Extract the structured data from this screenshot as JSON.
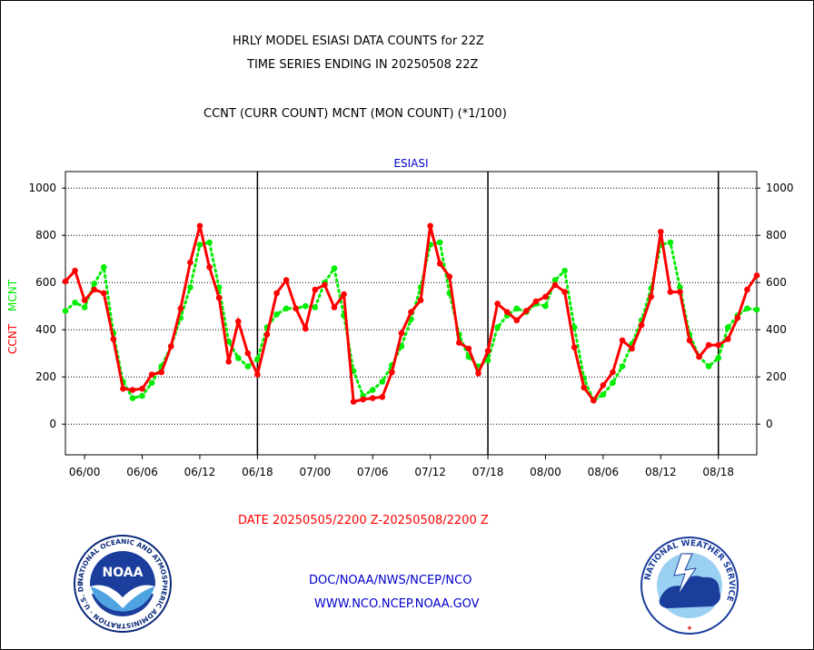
{
  "header": {
    "title_line1": "HRLY MODEL ESIASI DATA COUNTS for 22Z",
    "title_line2": "TIME SERIES ENDING IN 20250508 22Z",
    "subtitle": "CCNT (CURR COUNT) MCNT (MON COUNT) (*1/100)"
  },
  "footer": {
    "date_range": "DATE 20250505/2200 Z-20250508/2200 Z",
    "org_line": "DOC/NOAA/NWS/NCEP/NCO",
    "url_line": "WWW.NCO.NCEP.NOAA.GOV"
  },
  "logos": {
    "noaa": {
      "center_text": "NOAA",
      "ring_text": "NATIONAL OCEANIC AND ATMOSPHERIC ADMINISTRATION · U.S. DEPARTMENT OF COMMERCE"
    },
    "nws": {
      "ring_text": "NATIONAL WEATHER SERVICE"
    }
  },
  "colors": {
    "ccnt": "#ff0000",
    "mcnt": "#00ee00",
    "title_blue": "#0000cc",
    "footer_red": "#ff0000"
  },
  "chart_data": {
    "type": "line",
    "title": "ESIASI",
    "ylabel_ccnt": "CCNT",
    "ylabel_mcnt": "MCNT",
    "ylim": [
      -130,
      1070
    ],
    "y_ticks": [
      0,
      200,
      400,
      600,
      800,
      1000
    ],
    "x_tick_labels": [
      "06/00",
      "06/06",
      "06/12",
      "06/18",
      "07/00",
      "07/06",
      "07/12",
      "07/18",
      "08/00",
      "08/06",
      "08/12",
      "08/18"
    ],
    "x_tick_hours": [
      2,
      8,
      14,
      20,
      26,
      32,
      38,
      44,
      50,
      56,
      62,
      68
    ],
    "xlim_hours": [
      0,
      72
    ],
    "day_boundaries_hours": [
      20,
      44,
      68
    ],
    "grid": true,
    "series": [
      {
        "name": "CCNT",
        "style": "solid",
        "values": [
          [
            0,
            605
          ],
          [
            1,
            650
          ],
          [
            2,
            525
          ],
          [
            3,
            570
          ],
          [
            4,
            555
          ],
          [
            5,
            360
          ],
          [
            6,
            150
          ],
          [
            7,
            145
          ],
          [
            8,
            150
          ],
          [
            9,
            210
          ],
          [
            10,
            220
          ],
          [
            11,
            330
          ],
          [
            12,
            490
          ],
          [
            13,
            685
          ],
          [
            14,
            840
          ],
          [
            15,
            665
          ],
          [
            16,
            535
          ],
          [
            17,
            265
          ],
          [
            18,
            435
          ],
          [
            19,
            300
          ],
          [
            20,
            210
          ],
          [
            21,
            380
          ],
          [
            22,
            555
          ],
          [
            23,
            610
          ],
          [
            24,
            490
          ],
          [
            25,
            405
          ],
          [
            26,
            570
          ],
          [
            27,
            590
          ],
          [
            28,
            495
          ],
          [
            29,
            550
          ],
          [
            30,
            95
          ],
          [
            31,
            105
          ],
          [
            32,
            110
          ],
          [
            33,
            115
          ],
          [
            34,
            220
          ],
          [
            35,
            385
          ],
          [
            36,
            475
          ],
          [
            37,
            525
          ],
          [
            38,
            840
          ],
          [
            39,
            680
          ],
          [
            40,
            625
          ],
          [
            41,
            345
          ],
          [
            42,
            320
          ],
          [
            43,
            215
          ],
          [
            44,
            310
          ],
          [
            45,
            510
          ],
          [
            46,
            475
          ],
          [
            47,
            440
          ],
          [
            48,
            480
          ],
          [
            49,
            520
          ],
          [
            50,
            540
          ],
          [
            51,
            590
          ],
          [
            52,
            560
          ],
          [
            53,
            325
          ],
          [
            54,
            155
          ],
          [
            55,
            100
          ],
          [
            56,
            165
          ],
          [
            57,
            220
          ],
          [
            58,
            355
          ],
          [
            59,
            320
          ],
          [
            60,
            420
          ],
          [
            61,
            540
          ],
          [
            62,
            815
          ],
          [
            63,
            560
          ],
          [
            64,
            560
          ],
          [
            65,
            355
          ],
          [
            66,
            285
          ],
          [
            67,
            335
          ],
          [
            68,
            335
          ],
          [
            69,
            360
          ],
          [
            70,
            450
          ],
          [
            71,
            570
          ],
          [
            72,
            630
          ]
        ]
      },
      {
        "name": "MCNT",
        "style": "dotted",
        "values": [
          [
            0,
            480
          ],
          [
            1,
            515
          ],
          [
            2,
            495
          ],
          [
            3,
            595
          ],
          [
            4,
            665
          ],
          [
            5,
            385
          ],
          [
            6,
            180
          ],
          [
            7,
            110
          ],
          [
            8,
            120
          ],
          [
            9,
            175
          ],
          [
            10,
            245
          ],
          [
            11,
            330
          ],
          [
            12,
            450
          ],
          [
            13,
            580
          ],
          [
            14,
            760
          ],
          [
            15,
            770
          ],
          [
            16,
            580
          ],
          [
            17,
            350
          ],
          [
            18,
            280
          ],
          [
            19,
            245
          ],
          [
            20,
            275
          ],
          [
            21,
            410
          ],
          [
            22,
            465
          ],
          [
            23,
            490
          ],
          [
            24,
            490
          ],
          [
            25,
            500
          ],
          [
            26,
            495
          ],
          [
            27,
            600
          ],
          [
            28,
            660
          ],
          [
            29,
            460
          ],
          [
            30,
            225
          ],
          [
            31,
            120
          ],
          [
            32,
            145
          ],
          [
            33,
            180
          ],
          [
            34,
            250
          ],
          [
            35,
            330
          ],
          [
            36,
            445
          ],
          [
            37,
            580
          ],
          [
            38,
            760
          ],
          [
            39,
            770
          ],
          [
            40,
            555
          ],
          [
            41,
            380
          ],
          [
            42,
            285
          ],
          [
            43,
            245
          ],
          [
            44,
            270
          ],
          [
            45,
            410
          ],
          [
            46,
            460
          ],
          [
            47,
            490
          ],
          [
            48,
            475
          ],
          [
            49,
            510
          ],
          [
            50,
            500
          ],
          [
            51,
            610
          ],
          [
            52,
            650
          ],
          [
            53,
            410
          ],
          [
            54,
            195
          ],
          [
            55,
            100
          ],
          [
            56,
            125
          ],
          [
            57,
            175
          ],
          [
            58,
            245
          ],
          [
            59,
            340
          ],
          [
            60,
            440
          ],
          [
            61,
            575
          ],
          [
            62,
            760
          ],
          [
            63,
            770
          ],
          [
            64,
            580
          ],
          [
            65,
            380
          ],
          [
            66,
            285
          ],
          [
            67,
            245
          ],
          [
            68,
            280
          ],
          [
            69,
            410
          ],
          [
            70,
            460
          ],
          [
            71,
            490
          ],
          [
            72,
            485
          ]
        ]
      }
    ]
  }
}
